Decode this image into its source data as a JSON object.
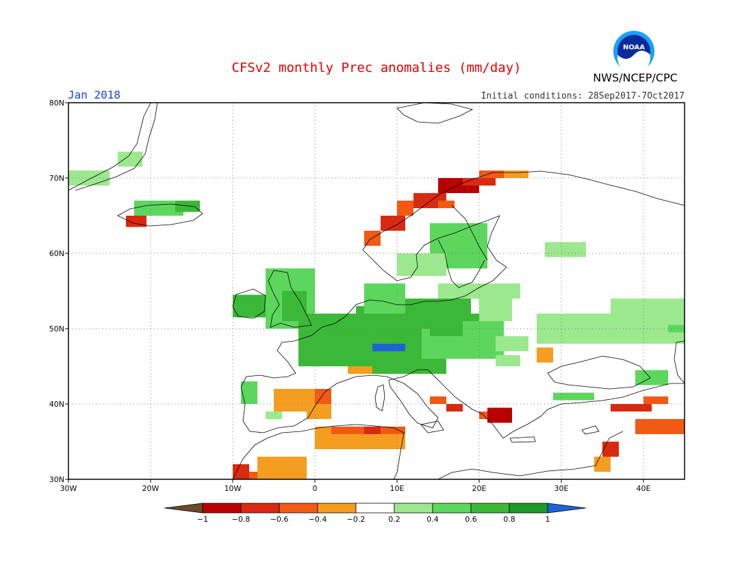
{
  "header": {
    "title": "CFSv2 monthly Prec anomalies (mm/day)",
    "month": "Jan 2018",
    "initial_conditions": "Initial conditions: 28Sep2017-7Oct2017",
    "organization": "NWS/NCEP/CPC",
    "logo_text": "NOAA"
  },
  "map": {
    "lon_range": [
      -30,
      45
    ],
    "lat_range": [
      30,
      80
    ],
    "lat_ticks": [
      {
        "v": 80,
        "label": "80N"
      },
      {
        "v": 70,
        "label": "70N"
      },
      {
        "v": 60,
        "label": "60N"
      },
      {
        "v": 50,
        "label": "50N"
      },
      {
        "v": 40,
        "label": "40N"
      },
      {
        "v": 30,
        "label": "30N"
      }
    ],
    "lon_ticks": [
      {
        "v": -30,
        "label": "30W"
      },
      {
        "v": -20,
        "label": "20W"
      },
      {
        "v": -10,
        "label": "10W"
      },
      {
        "v": 0,
        "label": "0"
      },
      {
        "v": 10,
        "label": "10E"
      },
      {
        "v": 20,
        "label": "20E"
      },
      {
        "v": 30,
        "label": "30E"
      },
      {
        "v": 40,
        "label": "40E"
      }
    ],
    "anomaly_cells": [
      {
        "lon": -30,
        "lat": 69,
        "w": 5,
        "h": 2,
        "v": 0.3
      },
      {
        "lon": -24,
        "lat": 71.5,
        "w": 3,
        "h": 2,
        "v": 0.3
      },
      {
        "lon": -22,
        "lat": 65,
        "w": 6,
        "h": 2,
        "v": 0.5
      },
      {
        "lon": -17,
        "lat": 65.5,
        "w": 3,
        "h": 1.5,
        "v": 0.7
      },
      {
        "lon": -23,
        "lat": 63.5,
        "w": 2.5,
        "h": 1.5,
        "v": -0.7
      },
      {
        "lon": -10,
        "lat": 51.5,
        "w": 4,
        "h": 3,
        "v": 0.6
      },
      {
        "lon": -6,
        "lat": 50,
        "w": 6,
        "h": 8,
        "v": 0.5
      },
      {
        "lon": -4,
        "lat": 51,
        "w": 3,
        "h": 4,
        "v": 0.7
      },
      {
        "lon": -2,
        "lat": 45,
        "w": 16,
        "h": 7,
        "v": 0.7
      },
      {
        "lon": 5,
        "lat": 44,
        "w": 11,
        "h": 9,
        "v": 0.7
      },
      {
        "lon": 13,
        "lat": 46,
        "w": 10,
        "h": 6,
        "v": 0.5
      },
      {
        "lon": 7,
        "lat": 47,
        "w": 4,
        "h": 1,
        "v": 1.0
      },
      {
        "lon": 9,
        "lat": 50,
        "w": 10,
        "h": 4,
        "v": 0.7
      },
      {
        "lon": 6,
        "lat": 52,
        "w": 5,
        "h": 4,
        "v": 0.4
      },
      {
        "lon": 14,
        "lat": 49,
        "w": 8,
        "h": 3,
        "v": 0.6
      },
      {
        "lon": 18,
        "lat": 48,
        "w": 5,
        "h": 3,
        "v": 0.4
      },
      {
        "lon": 22,
        "lat": 47,
        "w": 4,
        "h": 2,
        "v": 0.3
      },
      {
        "lon": 14,
        "lat": 58,
        "w": 7,
        "h": 6,
        "v": 0.4
      },
      {
        "lon": 10,
        "lat": 57,
        "w": 6,
        "h": 3,
        "v": 0.3
      },
      {
        "lon": 15,
        "lat": 54,
        "w": 10,
        "h": 2,
        "v": 0.3
      },
      {
        "lon": 20,
        "lat": 51,
        "w": 4,
        "h": 3,
        "v": 0.3
      },
      {
        "lon": 28,
        "lat": 59.5,
        "w": 5,
        "h": 2,
        "v": 0.3
      },
      {
        "lon": 27,
        "lat": 48,
        "w": 18,
        "h": 4,
        "v": 0.3
      },
      {
        "lon": 36,
        "lat": 49,
        "w": 9,
        "h": 5,
        "v": 0.3
      },
      {
        "lon": 43,
        "lat": 49.5,
        "w": 2,
        "h": 1,
        "v": 0.5
      },
      {
        "lon": 39,
        "lat": 42.5,
        "w": 4,
        "h": 2,
        "v": 0.4
      },
      {
        "lon": 29,
        "lat": 40.5,
        "w": 5,
        "h": 1,
        "v": 0.4
      },
      {
        "lon": -9,
        "lat": 40,
        "w": 2,
        "h": 3,
        "v": 0.5
      },
      {
        "lon": -6,
        "lat": 38,
        "w": 2,
        "h": 1,
        "v": 0.3
      },
      {
        "lon": 22,
        "lat": 45,
        "w": 3,
        "h": 1.5,
        "v": 0.3
      },
      {
        "lon": -5,
        "lat": 39,
        "w": 5,
        "h": 3,
        "v": -0.3
      },
      {
        "lon": -1,
        "lat": 38,
        "w": 3,
        "h": 4,
        "v": -0.3
      },
      {
        "lon": 0,
        "lat": 40,
        "w": 2,
        "h": 2,
        "v": -0.5
      },
      {
        "lon": 4,
        "lat": 44,
        "w": 3,
        "h": 1,
        "v": -0.3
      },
      {
        "lon": 0,
        "lat": 34,
        "w": 11,
        "h": 3,
        "v": -0.3
      },
      {
        "lon": 2,
        "lat": 36,
        "w": 9,
        "h": 1,
        "v": -0.5
      },
      {
        "lon": 6,
        "lat": 36,
        "w": 2,
        "h": 1,
        "v": -0.7
      },
      {
        "lon": -7,
        "lat": 30,
        "w": 6,
        "h": 3,
        "v": -0.3
      },
      {
        "lon": -10,
        "lat": 30,
        "w": 2,
        "h": 2,
        "v": -0.7
      },
      {
        "lon": -8,
        "lat": 30,
        "w": 1,
        "h": 1,
        "v": -0.5
      },
      {
        "lon": 14,
        "lat": 40,
        "w": 2,
        "h": 1,
        "v": -0.5
      },
      {
        "lon": 16,
        "lat": 39,
        "w": 2,
        "h": 1,
        "v": -0.7
      },
      {
        "lon": 21,
        "lat": 37.5,
        "w": 3,
        "h": 2,
        "v": -0.9
      },
      {
        "lon": 20,
        "lat": 38,
        "w": 1,
        "h": 1,
        "v": -0.5
      },
      {
        "lon": 27,
        "lat": 45.5,
        "w": 2,
        "h": 2,
        "v": -0.3
      },
      {
        "lon": 36,
        "lat": 39,
        "w": 5,
        "h": 1,
        "v": -0.7
      },
      {
        "lon": 40,
        "lat": 40,
        "w": 3,
        "h": 1,
        "v": -0.5
      },
      {
        "lon": 39,
        "lat": 36,
        "w": 6,
        "h": 2,
        "v": -0.5
      },
      {
        "lon": 35,
        "lat": 33,
        "w": 2,
        "h": 2,
        "v": -0.7
      },
      {
        "lon": 34,
        "lat": 31,
        "w": 2,
        "h": 2,
        "v": -0.3
      },
      {
        "lon": 6,
        "lat": 61,
        "w": 2,
        "h": 2,
        "v": -0.5
      },
      {
        "lon": 8,
        "lat": 63,
        "w": 3,
        "h": 2,
        "v": -0.7
      },
      {
        "lon": 10,
        "lat": 65,
        "w": 2,
        "h": 2,
        "v": -0.5
      },
      {
        "lon": 12,
        "lat": 66,
        "w": 4,
        "h": 2,
        "v": -0.7
      },
      {
        "lon": 15,
        "lat": 68,
        "w": 5,
        "h": 2,
        "v": -0.9
      },
      {
        "lon": 18,
        "lat": 69,
        "w": 4,
        "h": 1,
        "v": -0.7
      },
      {
        "lon": 20,
        "lat": 70,
        "w": 5,
        "h": 1,
        "v": -0.5
      },
      {
        "lon": 23,
        "lat": 70,
        "w": 3,
        "h": 1,
        "v": -0.3
      },
      {
        "lon": 15,
        "lat": 66,
        "w": 2,
        "h": 1,
        "v": -0.5
      }
    ],
    "colorbar": {
      "colors": [
        "#6b4a2e",
        "#b80000",
        "#d82a10",
        "#f05a14",
        "#f49d20",
        "#ffffff",
        "#9ce88e",
        "#5dd65d",
        "#3cb838",
        "#1f9a28",
        "#1e64d6"
      ],
      "labels": [
        "−1",
        "−0.8",
        "−0.6",
        "−0.4",
        "−0.2",
        "0.2",
        "0.4",
        "0.6",
        "0.8",
        "1"
      ]
    }
  }
}
